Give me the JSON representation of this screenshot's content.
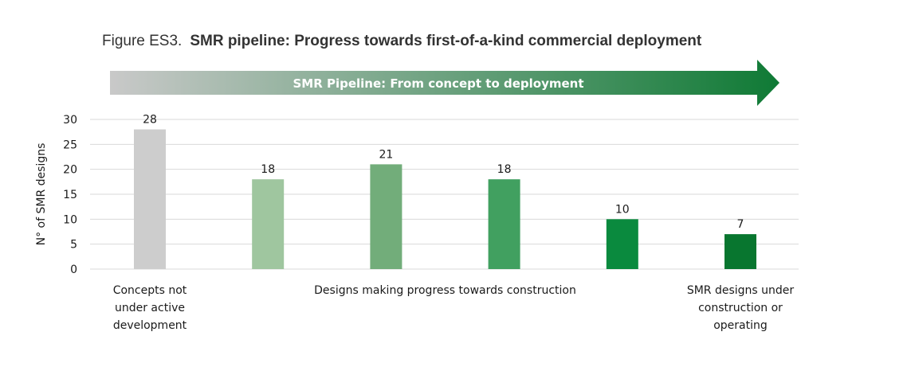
{
  "chart_data": {
    "type": "bar",
    "title_prefix": "Figure ES3.",
    "title": "SMR pipeline: Progress towards first-of-a-kind commercial deployment",
    "banner": {
      "text": "SMR Pipeline: From concept to deployment",
      "color_start": "#c9c9c9",
      "color_end": "#0f7a35"
    },
    "ylabel": "N° of SMR designs",
    "ylim": [
      0,
      30
    ],
    "yticks": [
      0,
      5,
      10,
      15,
      20,
      25,
      30
    ],
    "grid": true,
    "values": [
      28,
      18,
      21,
      18,
      10,
      7
    ],
    "colors": [
      "#cdcdcd",
      "#9fc69f",
      "#72ad7a",
      "#41a060",
      "#0a8a3e",
      "#08762f"
    ],
    "category_groups": [
      {
        "lines": [
          "Concepts not",
          "under active",
          "development"
        ],
        "bars": [
          0
        ]
      },
      {
        "lines": [
          "Designs making progress towards construction"
        ],
        "bars": [
          1,
          2,
          3,
          4
        ]
      },
      {
        "lines": [
          "SMR designs under",
          "construction or",
          "operating"
        ],
        "bars": [
          5
        ]
      }
    ]
  }
}
